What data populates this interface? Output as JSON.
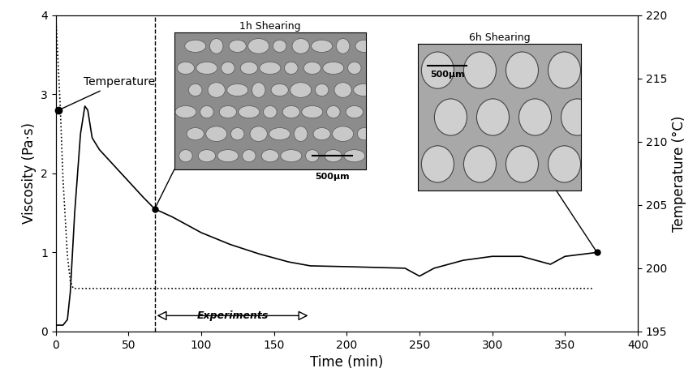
{
  "chart_data": {
    "type": "line",
    "x_label": "Time (min)",
    "y_label": "Viscosity (Pa·s)",
    "y2_label": "Temperature (°C)",
    "xlim": [
      0,
      400
    ],
    "xticks": [
      0,
      50,
      100,
      150,
      200,
      250,
      300,
      350,
      400
    ],
    "ylim": [
      0,
      4
    ],
    "yticks": [
      0,
      1,
      2,
      3,
      4
    ],
    "y2lim": [
      195,
      220
    ],
    "y2ticks": [
      195,
      200,
      205,
      210,
      215,
      220
    ],
    "series": [
      {
        "name": "Viscosity",
        "color": "#000000",
        "line_style": "solid",
        "x": [
          0,
          5,
          8,
          10,
          13,
          17,
          20,
          22,
          25,
          30,
          40,
          50,
          60,
          68,
          80,
          100,
          120,
          140,
          160,
          175,
          200,
          240,
          250,
          260,
          280,
          300,
          320,
          340,
          350,
          372
        ],
        "values": [
          0.08,
          0.08,
          0.15,
          0.5,
          1.5,
          2.5,
          2.85,
          2.8,
          2.45,
          2.3,
          2.1,
          1.9,
          1.7,
          1.55,
          1.45,
          1.25,
          1.1,
          0.98,
          0.88,
          0.83,
          0.82,
          0.8,
          0.7,
          0.8,
          0.9,
          0.95,
          0.95,
          0.85,
          0.95,
          1.0
        ]
      },
      {
        "name": "Temperature",
        "color": "#000000",
        "line_style": "dotted",
        "axis": "y2",
        "x": [
          0,
          3,
          5,
          8,
          10,
          12,
          370
        ],
        "values": [
          220,
          213,
          207,
          201,
          199,
          198.4,
          198.4
        ]
      }
    ],
    "annotations": [
      {
        "text": "Temperature",
        "x": 2,
        "y": 212.5,
        "axis": "y2"
      }
    ],
    "vline": 68,
    "experiments": {
      "label": "Experiments",
      "x": [
        68,
        175
      ],
      "y": 0.2
    },
    "insets": [
      {
        "title": "1h Shearing",
        "x": 68,
        "y": 1.55,
        "scale_bar": "500µm"
      },
      {
        "title": "6h Shearing",
        "x": 372,
        "y": 1.0,
        "scale_bar": "500µm"
      }
    ]
  }
}
